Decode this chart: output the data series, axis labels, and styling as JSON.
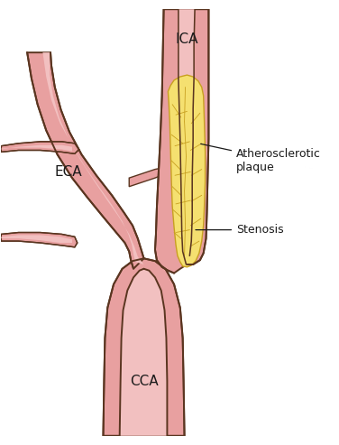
{
  "background_color": "#ffffff",
  "artery_fill": "#e8a0a0",
  "artery_inner_fill": "#f2c0c0",
  "plaque_fill": "#f5e070",
  "plaque_stroke": "#c8a020",
  "outline_color": "#5a3520",
  "text_color": "#1a1a1a",
  "label_ica": "ICA",
  "label_eca": "ECA",
  "label_cca": "CCA",
  "label_plaque": "Atherosclerotic\nplaque",
  "label_stenosis": "Stenosis",
  "figsize": [
    3.76,
    4.93
  ],
  "dpi": 100
}
